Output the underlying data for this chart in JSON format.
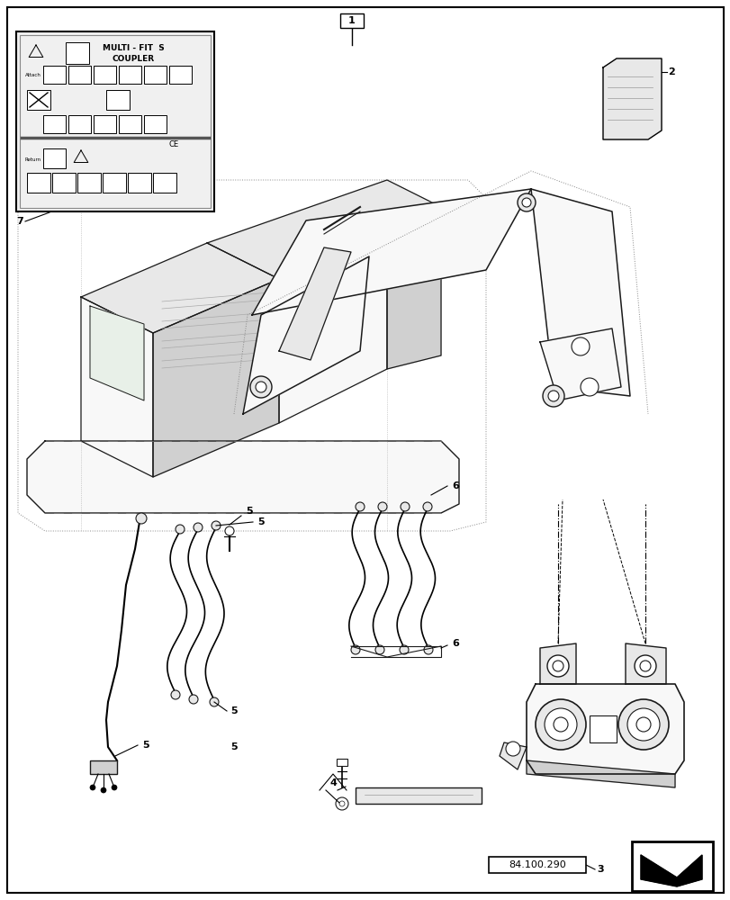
{
  "background_color": "#ffffff",
  "border_color": "#000000",
  "label_1": "1",
  "label_2": "2",
  "label_3": "3",
  "label_4": "4",
  "label_5": "5",
  "label_6": "6",
  "label_7": "7",
  "ref_number": "84.100.290",
  "coupler_text_line1": "MULTI - FIT  S",
  "coupler_text_line2": "COUPLER",
  "figsize": [
    8.12,
    10.0
  ],
  "dpi": 100,
  "line_color": "#1a1a1a",
  "fill_light": "#f8f8f8",
  "fill_mid": "#e8e8e8",
  "fill_dark": "#d0d0d0",
  "dot_line_color": "#555555"
}
